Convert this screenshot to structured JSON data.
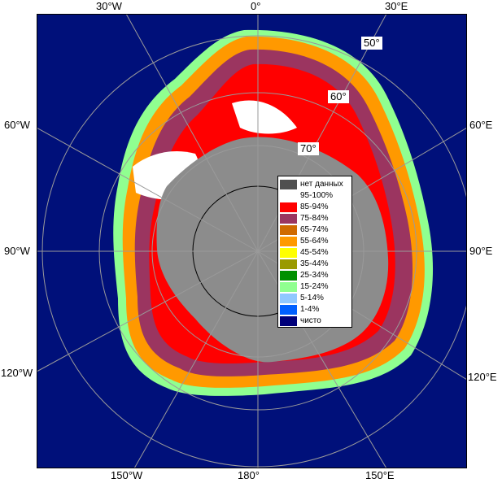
{
  "map": {
    "longitude_labels": {
      "top": [
        "30°W",
        "0°",
        "30°E"
      ],
      "left": [
        "60°W",
        "90°W",
        "120°W"
      ],
      "right": [
        "60°E",
        "90°E",
        "120°E"
      ],
      "bottom": [
        "150°W",
        "180°",
        "150°E"
      ]
    },
    "latitude_labels": [
      "50°",
      "60°",
      "70°"
    ],
    "colors": {
      "ocean": "#00107a",
      "land": "#8c8c8c",
      "nodata": "#555555",
      "grid": "#9a9a9a"
    }
  },
  "legend": {
    "items": [
      {
        "label": "нет данных",
        "color": "#505050"
      },
      {
        "label": "95-100%",
        "color": "#ffffff"
      },
      {
        "label": "85-94%",
        "color": "#ff0000"
      },
      {
        "label": "75-84%",
        "color": "#9b3560"
      },
      {
        "label": "65-74%",
        "color": "#d06a00"
      },
      {
        "label": "55-64%",
        "color": "#ff9900"
      },
      {
        "label": "45-54%",
        "color": "#ffff00"
      },
      {
        "label": "35-44%",
        "color": "#9a9a00"
      },
      {
        "label": "25-34%",
        "color": "#009000"
      },
      {
        "label": "15-24%",
        "color": "#90ff90"
      },
      {
        "label": "5-14%",
        "color": "#90c8ff"
      },
      {
        "label": "1-4%",
        "color": "#0060ff"
      },
      {
        "label": "чисто",
        "color": "#00007a"
      }
    ]
  }
}
